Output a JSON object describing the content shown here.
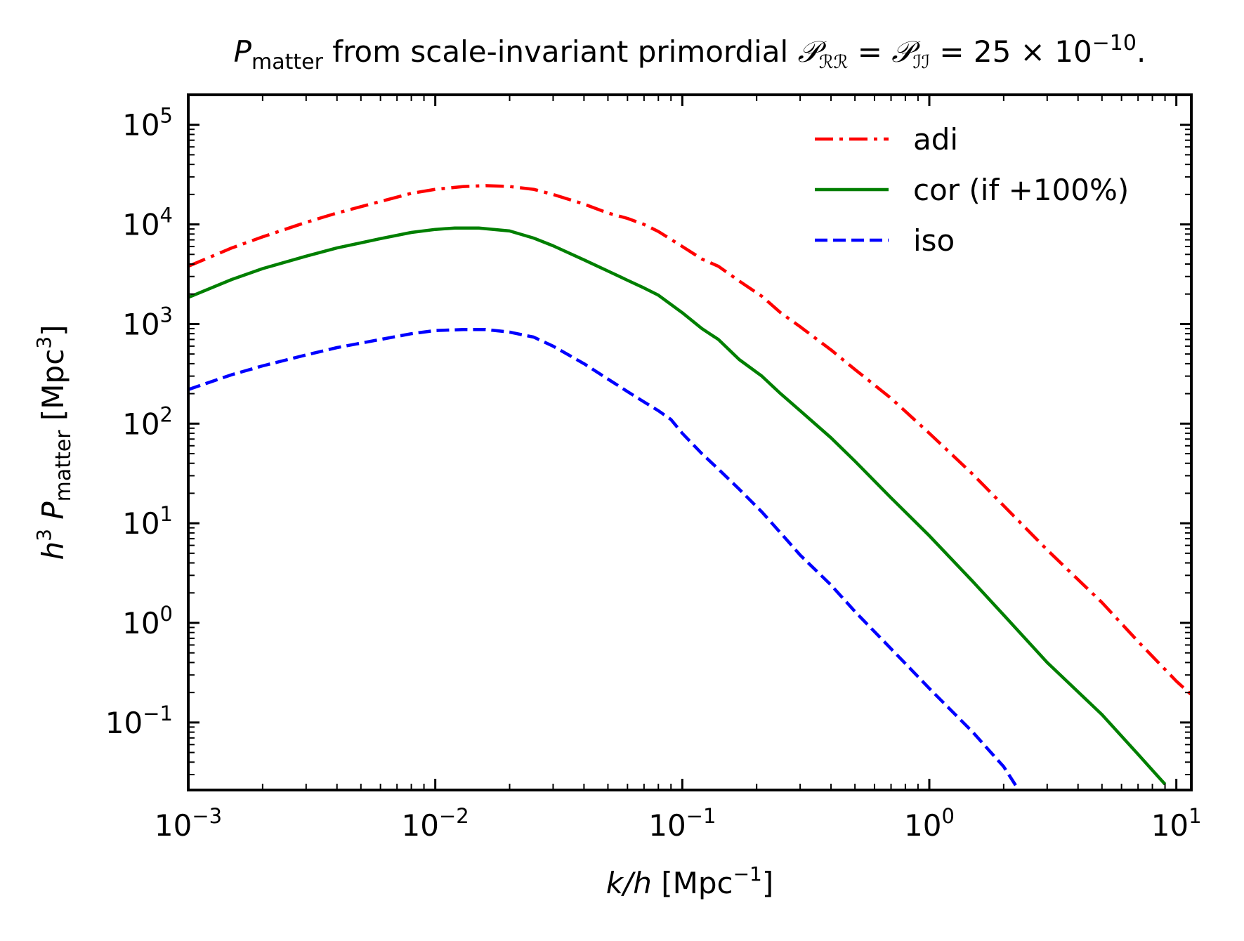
{
  "chart_data": {
    "type": "line",
    "title": {
      "p": "P",
      "p_sub": "matter",
      "mid": " from scale-invariant primordial ",
      "calP": "𝒫",
      "rr_sub": "ℛℛ",
      "eq": " = ",
      "ii_sub": "ℐℐ",
      "value": " = 25 × 10",
      "exp": "−10",
      "end": "."
    },
    "xlabel": {
      "k": "k",
      "slash_h": "/h",
      "unit": " [Mpc",
      "exp": "−1",
      "close": "]"
    },
    "ylabel": {
      "h": "h",
      "h_exp": "3",
      "p": " P",
      "p_sub": "matter",
      "unit": " [Mpc",
      "exp": "3",
      "close": "]"
    },
    "x_scale": "log",
    "y_scale": "log",
    "xlim": [
      0.001,
      11.5
    ],
    "ylim": [
      0.021,
      200000
    ],
    "x_ticks": [
      {
        "base": "10",
        "exp": "−3",
        "value": 0.001
      },
      {
        "base": "10",
        "exp": "−2",
        "value": 0.01
      },
      {
        "base": "10",
        "exp": "−1",
        "value": 0.1
      },
      {
        "base": "10",
        "exp": "0",
        "value": 1
      },
      {
        "base": "10",
        "exp": "1",
        "value": 10
      }
    ],
    "y_ticks": [
      {
        "base": "10",
        "exp": "−1",
        "value": 0.1
      },
      {
        "base": "10",
        "exp": "0",
        "value": 1
      },
      {
        "base": "10",
        "exp": "1",
        "value": 10
      },
      {
        "base": "10",
        "exp": "2",
        "value": 100
      },
      {
        "base": "10",
        "exp": "3",
        "value": 1000
      },
      {
        "base": "10",
        "exp": "4",
        "value": 10000
      },
      {
        "base": "10",
        "exp": "5",
        "value": 100000
      }
    ],
    "grid": false,
    "legend_position": "top-right",
    "series": [
      {
        "name": "adi",
        "color": "#ff0000",
        "style": "dashdot",
        "points": [
          [
            0.001,
            3800
          ],
          [
            0.0015,
            5800
          ],
          [
            0.002,
            7500
          ],
          [
            0.003,
            10500
          ],
          [
            0.004,
            13000
          ],
          [
            0.006,
            17000
          ],
          [
            0.008,
            20500
          ],
          [
            0.01,
            22500
          ],
          [
            0.013,
            24000
          ],
          [
            0.016,
            24500
          ],
          [
            0.02,
            24000
          ],
          [
            0.025,
            22500
          ],
          [
            0.03,
            20000
          ],
          [
            0.04,
            16000
          ],
          [
            0.05,
            13000
          ],
          [
            0.06,
            11500
          ],
          [
            0.07,
            10000
          ],
          [
            0.08,
            8500
          ],
          [
            0.1,
            6000
          ],
          [
            0.12,
            4500
          ],
          [
            0.14,
            3800
          ],
          [
            0.17,
            2700
          ],
          [
            0.21,
            1900
          ],
          [
            0.25,
            1300
          ],
          [
            0.3,
            940
          ],
          [
            0.4,
            550
          ],
          [
            0.5,
            350
          ],
          [
            0.7,
            180
          ],
          [
            1.0,
            80
          ],
          [
            1.5,
            31
          ],
          [
            2.0,
            15
          ],
          [
            3.0,
            5.4
          ],
          [
            5.0,
            1.6
          ],
          [
            7.0,
            0.65
          ],
          [
            10.0,
            0.26
          ],
          [
            11.5,
            0.19
          ]
        ]
      },
      {
        "name": "cor (if +100%)",
        "color": "#007f00",
        "style": "solid",
        "points": [
          [
            0.001,
            1850
          ],
          [
            0.0015,
            2800
          ],
          [
            0.002,
            3600
          ],
          [
            0.003,
            4800
          ],
          [
            0.004,
            5800
          ],
          [
            0.006,
            7200
          ],
          [
            0.008,
            8300
          ],
          [
            0.01,
            8900
          ],
          [
            0.012,
            9200
          ],
          [
            0.015,
            9200
          ],
          [
            0.02,
            8600
          ],
          [
            0.025,
            7300
          ],
          [
            0.03,
            6100
          ],
          [
            0.04,
            4400
          ],
          [
            0.05,
            3400
          ],
          [
            0.06,
            2750
          ],
          [
            0.07,
            2300
          ],
          [
            0.08,
            1950
          ],
          [
            0.1,
            1300
          ],
          [
            0.12,
            900
          ],
          [
            0.14,
            700
          ],
          [
            0.17,
            440
          ],
          [
            0.21,
            300
          ],
          [
            0.25,
            200
          ],
          [
            0.3,
            135
          ],
          [
            0.4,
            72
          ],
          [
            0.5,
            42
          ],
          [
            0.7,
            18
          ],
          [
            1.0,
            7.5
          ],
          [
            1.5,
            2.6
          ],
          [
            2.0,
            1.2
          ],
          [
            3.0,
            0.4
          ],
          [
            5.0,
            0.12
          ],
          [
            7.0,
            0.048
          ],
          [
            9.0,
            0.024
          ]
        ]
      },
      {
        "name": "iso",
        "color": "#0000ff",
        "style": "dashed",
        "points": [
          [
            0.001,
            220
          ],
          [
            0.0015,
            310
          ],
          [
            0.002,
            380
          ],
          [
            0.003,
            490
          ],
          [
            0.004,
            580
          ],
          [
            0.006,
            700
          ],
          [
            0.008,
            800
          ],
          [
            0.01,
            860
          ],
          [
            0.013,
            880
          ],
          [
            0.016,
            880
          ],
          [
            0.02,
            830
          ],
          [
            0.025,
            740
          ],
          [
            0.03,
            600
          ],
          [
            0.04,
            400
          ],
          [
            0.05,
            280
          ],
          [
            0.06,
            210
          ],
          [
            0.07,
            165
          ],
          [
            0.08,
            135
          ],
          [
            0.09,
            110
          ],
          [
            0.1,
            80
          ],
          [
            0.12,
            50
          ],
          [
            0.14,
            35
          ],
          [
            0.17,
            22
          ],
          [
            0.21,
            13
          ],
          [
            0.25,
            8
          ],
          [
            0.3,
            4.8
          ],
          [
            0.4,
            2.4
          ],
          [
            0.5,
            1.3
          ],
          [
            0.7,
            0.55
          ],
          [
            1.0,
            0.22
          ],
          [
            1.5,
            0.08
          ],
          [
            2.0,
            0.036
          ],
          [
            2.3,
            0.021
          ]
        ]
      }
    ]
  }
}
